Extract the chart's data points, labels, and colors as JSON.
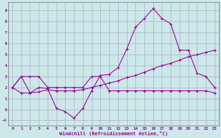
{
  "background_color": "#cce8e8",
  "grid_color": "#aaaacc",
  "line_color": "#990099",
  "x_ticks": [
    0,
    1,
    2,
    3,
    4,
    5,
    6,
    7,
    8,
    9,
    10,
    11,
    12,
    13,
    14,
    15,
    16,
    17,
    18,
    19,
    20,
    21,
    22,
    23
  ],
  "y_ticks": [
    -1,
    0,
    1,
    2,
    3,
    4,
    5,
    6,
    7,
    8,
    9
  ],
  "xlim": [
    -0.5,
    23.5
  ],
  "ylim": [
    -1.5,
    9.8
  ],
  "xlabel": "Windchill (Refroidissement éolien,°C)",
  "curve1_x": [
    0,
    1,
    2,
    3,
    4,
    5,
    6,
    7,
    8,
    9,
    10,
    11,
    12,
    13,
    14,
    15,
    16,
    17,
    18,
    19,
    20,
    21,
    22,
    23
  ],
  "curve1_y": [
    2.0,
    3.0,
    1.5,
    2.0,
    1.9,
    0.1,
    -0.2,
    -0.8,
    0.1,
    1.7,
    3.1,
    3.2,
    3.8,
    5.5,
    7.5,
    8.3,
    9.2,
    8.3,
    7.8,
    5.4,
    5.4,
    3.3,
    3.0,
    2.0
  ],
  "curve2_x": [
    0,
    1,
    2,
    3,
    4,
    5,
    6,
    7,
    8,
    9,
    10,
    11,
    12,
    13,
    14,
    15,
    16,
    17,
    18,
    19,
    20,
    21,
    22,
    23
  ],
  "curve2_y": [
    2.0,
    1.5,
    1.5,
    1.6,
    1.8,
    1.7,
    1.7,
    1.7,
    1.8,
    2.0,
    2.2,
    2.4,
    2.6,
    2.9,
    3.1,
    3.4,
    3.7,
    4.0,
    4.2,
    4.5,
    4.8,
    5.0,
    5.2,
    5.4
  ],
  "curve3_x": [
    0,
    1,
    2,
    3,
    4,
    5,
    6,
    7,
    8,
    9,
    10,
    11,
    12,
    13,
    14,
    15,
    16,
    17,
    18,
    19,
    20,
    21,
    22,
    23
  ],
  "curve3_y": [
    2.0,
    3.0,
    3.0,
    3.0,
    2.0,
    2.0,
    2.0,
    2.0,
    2.0,
    3.0,
    3.0,
    1.7,
    1.7,
    1.7,
    1.7,
    1.7,
    1.7,
    1.7,
    1.7,
    1.7,
    1.7,
    1.7,
    1.7,
    1.5
  ]
}
